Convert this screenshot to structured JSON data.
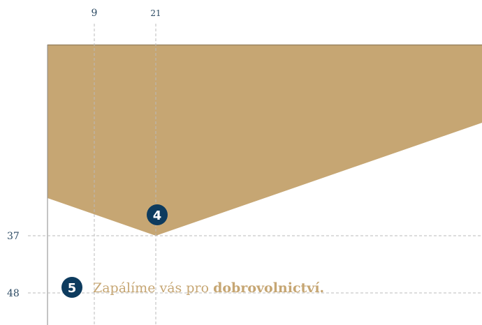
{
  "guides": {
    "x": [
      "9",
      "21"
    ],
    "y": [
      "37",
      "48"
    ]
  },
  "badges": [
    "4",
    "5"
  ],
  "tagline": {
    "text": "Zapálíme vás pro",
    "bold": "dobrovolnictví."
  }
}
